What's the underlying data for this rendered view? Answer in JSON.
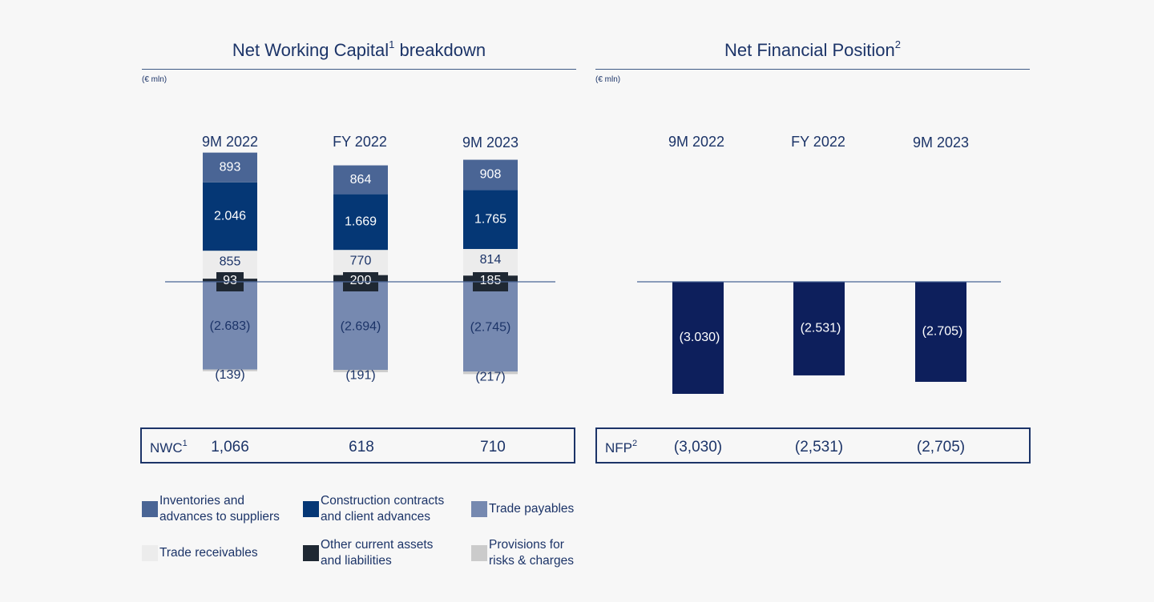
{
  "nwc_chart": {
    "title": "Net Working Capital",
    "title_sup": "1",
    "title_suffix": " breakdown",
    "unit": "(€ mln)"
  },
  "nfp_chart": {
    "title": "Net Financial Position",
    "title_sup": "2",
    "unit": "(€ mln)"
  },
  "periods": [
    "9M 2022",
    "FY 2022",
    "9M 2023"
  ],
  "colors": {
    "inventories": "#4a6595",
    "construction": "#053775",
    "receivables": "#ececec",
    "other": "#1f2833",
    "payables": "#7689b0",
    "provisions": "#cbcbcb",
    "nfp_bar": "#0d1f5c",
    "text_dark": "#1c3468"
  },
  "chart_data": [
    {
      "type": "bar",
      "stacked": true,
      "title": "Net Working Capital breakdown",
      "unit": "(€ mln)",
      "categories": [
        "9M 2022",
        "FY 2022",
        "9M 2023"
      ],
      "series": [
        {
          "name": "Inventories and advances to suppliers",
          "key": "inventories",
          "values": [
            893,
            864,
            908
          ],
          "labels": [
            "893",
            "864",
            "908"
          ]
        },
        {
          "name": "Construction contracts and client advances",
          "key": "construction",
          "values": [
            2046,
            1669,
            1765
          ],
          "labels": [
            "2.046",
            "1.669",
            "1.765"
          ]
        },
        {
          "name": "Trade receivables",
          "key": "receivables",
          "values": [
            855,
            770,
            814
          ],
          "labels": [
            "855",
            "770",
            "814"
          ]
        },
        {
          "name": "Other current assets and liabilities",
          "key": "other",
          "values": [
            93,
            200,
            185
          ],
          "labels": [
            "93",
            "200",
            "185"
          ]
        },
        {
          "name": "Trade payables",
          "key": "payables",
          "values": [
            -2683,
            -2694,
            -2745
          ],
          "labels": [
            "(2.683)",
            "(2.694)",
            "(2.745)"
          ]
        },
        {
          "name": "Provisions for risks & charges",
          "key": "provisions",
          "values": [
            -139,
            -191,
            -217
          ],
          "labels": [
            "(139)",
            "(191)",
            "(217)"
          ]
        }
      ]
    },
    {
      "type": "bar",
      "title": "Net Financial Position",
      "unit": "(€ mln)",
      "categories": [
        "9M 2022",
        "FY 2022",
        "9M 2023"
      ],
      "series": [
        {
          "name": "Net Financial Position",
          "values": [
            -3030,
            -2531,
            -2705
          ],
          "labels": [
            "(3.030)",
            "(2.531)",
            "(2.705)"
          ]
        }
      ]
    }
  ],
  "nwc_totals": {
    "label": "NWC",
    "sup": "1",
    "values": [
      "1,066",
      "618",
      "710"
    ]
  },
  "nfp_totals": {
    "label": "NFP",
    "sup": "2",
    "values": [
      "(3,030)",
      "(2,531)",
      "(2,705)"
    ]
  },
  "legend": [
    {
      "key": "inventories",
      "label": "Inventories and\nadvances to suppliers"
    },
    {
      "key": "construction",
      "label": "Construction contracts\nand client advances"
    },
    {
      "key": "payables",
      "label": "Trade payables"
    },
    {
      "key": "receivables",
      "label": "Trade receivables"
    },
    {
      "key": "other",
      "label": "Other current assets\nand liabilities"
    },
    {
      "key": "provisions",
      "label": "Provisions for\nrisks & charges"
    }
  ]
}
